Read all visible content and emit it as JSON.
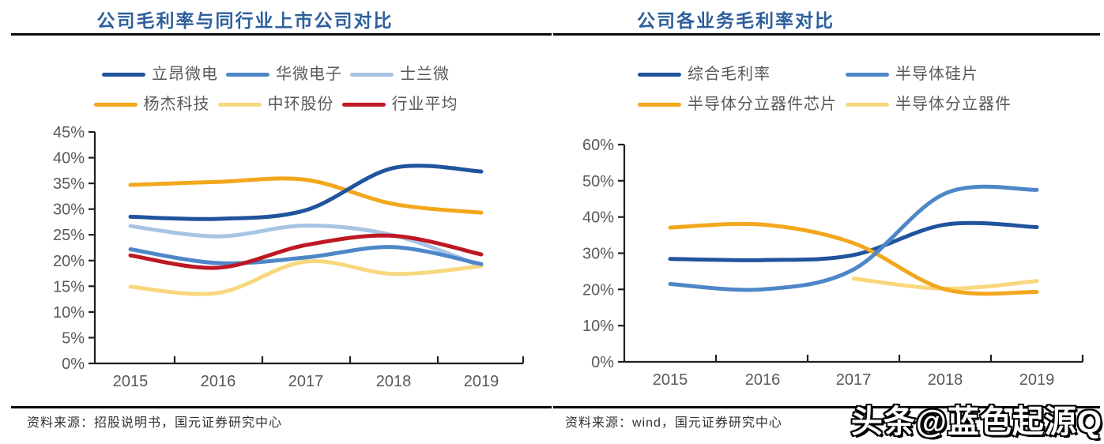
{
  "theme": {
    "title_color": "#2e5f9c",
    "axis_text_color": "#595959",
    "legend_text_color": "#595959",
    "source_text_color": "#333333",
    "axis_line_color": "#1f1f1f",
    "divider_color": "#0a0a0a",
    "watermark_fill": "#ffffff",
    "watermark_outline": "#000000"
  },
  "watermark": {
    "text": "头条@蓝色起源Q"
  },
  "chart_data": [
    {
      "type": "line",
      "title": "公司毛利率与同行业上市公司对比",
      "source": "资料来源：招股说明书，国元证券研究中心",
      "x_labels": [
        "2015",
        "2016",
        "2017",
        "2018",
        "2019"
      ],
      "ylim": [
        0,
        45
      ],
      "ytick_step": 5,
      "ytick_labels": [
        "0%",
        "5%",
        "10%",
        "15%",
        "20%",
        "25%",
        "30%",
        "35%",
        "40%",
        "45%"
      ],
      "grid": false,
      "legend_position": "top",
      "series": [
        {
          "name": "立昂微电",
          "color": "#20549e",
          "values": [
            28.5,
            28.1,
            29.8,
            38.0,
            37.3
          ]
        },
        {
          "name": "华微电子",
          "color": "#4e87c8",
          "values": [
            22.2,
            19.5,
            20.6,
            22.6,
            19.3
          ]
        },
        {
          "name": "士兰微",
          "color": "#a7c4e4",
          "values": [
            26.7,
            24.7,
            26.8,
            24.9,
            18.9
          ]
        },
        {
          "name": "杨杰科技",
          "color": "#f2a71c",
          "values": [
            34.7,
            35.3,
            35.7,
            31.0,
            29.3
          ]
        },
        {
          "name": "中环股份",
          "color": "#f8d87e",
          "values": [
            14.9,
            13.7,
            19.8,
            17.4,
            18.9
          ]
        },
        {
          "name": "行业平均",
          "color": "#bd1823",
          "values": [
            21.0,
            18.6,
            23.0,
            24.8,
            21.2
          ]
        }
      ]
    },
    {
      "type": "line",
      "title": "公司各业务毛利率对比",
      "source": "资料来源：wind，国元证券研究中心",
      "x_labels": [
        "2015",
        "2016",
        "2017",
        "2018",
        "2019"
      ],
      "ylim": [
        0,
        60
      ],
      "ytick_step": 10,
      "ytick_labels": [
        "0%",
        "10%",
        "20%",
        "30%",
        "40%",
        "50%",
        "60%"
      ],
      "grid": false,
      "legend_position": "top",
      "series": [
        {
          "name": "综合毛利率",
          "color": "#20549e",
          "values": [
            28.4,
            28.1,
            29.5,
            37.9,
            37.2
          ]
        },
        {
          "name": "半导体硅片",
          "color": "#4e87c8",
          "values": [
            21.5,
            20.0,
            25.5,
            46.5,
            47.5
          ]
        },
        {
          "name": "半导体分立器件芯片",
          "color": "#f2a71c",
          "values": [
            37.1,
            37.9,
            32.8,
            20.0,
            19.3
          ]
        },
        {
          "name": "半导体分立器件",
          "color": "#f8d87e",
          "values": [
            null,
            null,
            23.0,
            20.2,
            22.3
          ]
        }
      ]
    }
  ]
}
